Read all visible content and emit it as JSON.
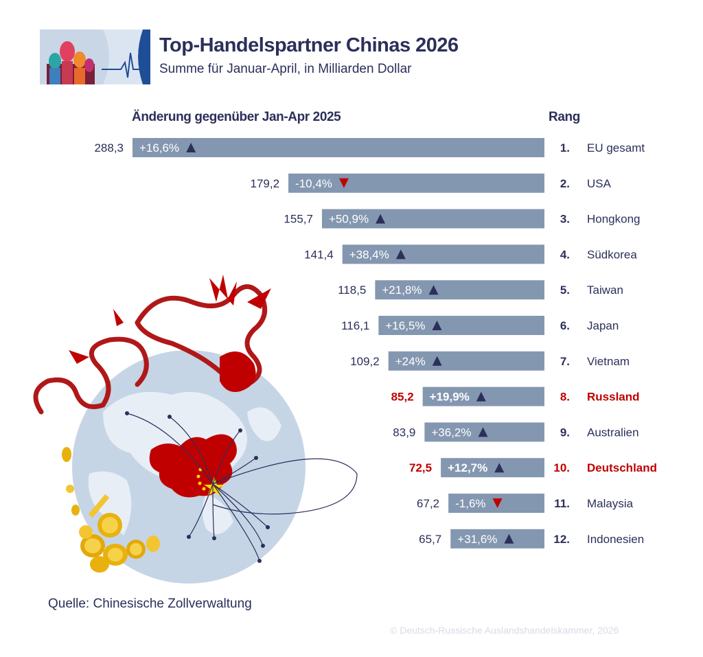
{
  "header": {
    "title": "Top-Handelspartner Chinas 2026",
    "subtitle": "Summe für Januar-April, in Milliarden Dollar"
  },
  "columns": {
    "change_label": "Änderung gegenüber Jan-Apr 2025",
    "rank_label": "Rang"
  },
  "colors": {
    "bar": "#8497b0",
    "text_dark": "#2b2f5a",
    "highlight": "#c00000",
    "arrow_up": "#2b2f5a",
    "arrow_down": "#c00000"
  },
  "chart_data": {
    "type": "bar",
    "orientation": "horizontal",
    "unit": "Milliarden Dollar",
    "categories": [
      "EU gesamt",
      "USA",
      "Hongkong",
      "Südkorea",
      "Taiwan",
      "Japan",
      "Vietnam",
      "Russland",
      "Australien",
      "Deutschland",
      "Malaysia",
      "Indonesien"
    ],
    "ranks": [
      "1.",
      "2.",
      "3.",
      "4.",
      "5.",
      "6.",
      "7.",
      "8.",
      "9.",
      "10.",
      "11.",
      "12."
    ],
    "values": [
      288.3,
      179.2,
      155.7,
      141.4,
      118.5,
      116.1,
      109.2,
      85.2,
      83.9,
      72.5,
      67.2,
      65.7
    ],
    "value_labels": [
      "288,3",
      "179,2",
      "155,7",
      "141,4",
      "118,5",
      "116,1",
      "109,2",
      "85,2",
      "83,9",
      "72,5",
      "67,2",
      "65,7"
    ],
    "change_labels": [
      "+16,6%",
      "-10,4%",
      "+50,9%",
      "+38,4%",
      "+21,8%",
      "+16,5%",
      "+24%",
      "+19,9%",
      "+36,2%",
      "+12,7%",
      "-1,6%",
      "+31,6%"
    ],
    "change_direction": [
      "up",
      "down",
      "up",
      "up",
      "up",
      "up",
      "up",
      "up",
      "up",
      "up",
      "down",
      "up"
    ],
    "highlighted": [
      "Russland",
      "Deutschland"
    ],
    "xlim": [
      0,
      288.3
    ]
  },
  "footer": {
    "source": "Quelle: Chinesische Zollverwaltung",
    "copyright": "© Deutsch-Russische Auslandshandelskammer, 2026"
  }
}
